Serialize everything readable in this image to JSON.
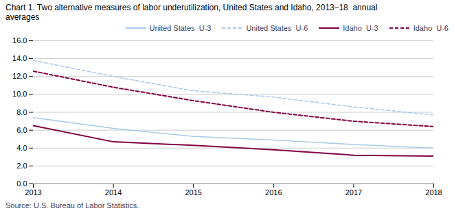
{
  "chart_data": {
    "type": "line",
    "title": "Chart 1. Two alternative measures of labor underutilization, United States and Idaho, 2013–18  annual\naverages",
    "source": "Source: U.S. Bureau of Labor Statistics.",
    "x": [
      2013,
      2014,
      2015,
      2016,
      2017,
      2018
    ],
    "series": [
      {
        "name": "United States  U-3",
        "color": "#a8c8e8",
        "line_style": "solid",
        "values": [
          7.4,
          6.2,
          5.3,
          4.9,
          4.4,
          4.0
        ]
      },
      {
        "name": "United States  U-6",
        "color": "#a8c8e8",
        "line_style": "dashed",
        "values": [
          13.8,
          12.0,
          10.4,
          9.7,
          8.6,
          7.7
        ]
      },
      {
        "name": "Idaho  U-3",
        "color": "#800040",
        "line_style": "solid",
        "values": [
          6.5,
          4.7,
          4.3,
          3.8,
          3.2,
          3.1
        ]
      },
      {
        "name": "Idaho  U-6",
        "color": "#800040",
        "line_style": "dashed",
        "values": [
          12.6,
          10.8,
          9.3,
          8.0,
          7.0,
          6.4
        ]
      }
    ],
    "xlim": [
      2013,
      2018
    ],
    "xticks": [
      2013,
      2014,
      2015,
      2016,
      2017,
      2018
    ],
    "ylim": [
      0.0,
      16.0
    ],
    "yticks": [
      {
        "value": 0,
        "label": "0.0"
      },
      {
        "value": 2,
        "label": "2.0"
      },
      {
        "value": 4,
        "label": "4.0"
      },
      {
        "value": 6,
        "label": "6.0"
      },
      {
        "value": 8,
        "label": "8.0"
      },
      {
        "value": 10,
        "label": "10.0"
      },
      {
        "value": 12,
        "label": "12.0"
      },
      {
        "value": 14,
        "label": "14.0"
      },
      {
        "value": 16,
        "label": "16.0"
      }
    ],
    "grid": true,
    "legend": "upper right"
  }
}
